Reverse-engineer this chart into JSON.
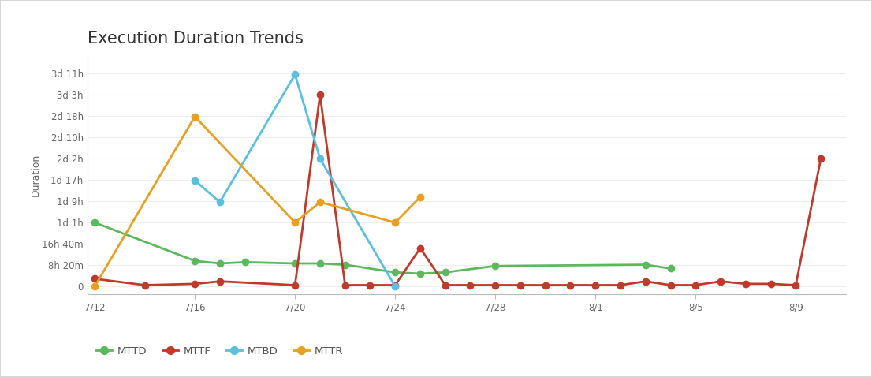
{
  "title": "Execution Duration Trends",
  "ylabel": "Duration",
  "background_color": "#ffffff",
  "border_color": "#d0d0d0",
  "title_color": "#333333",
  "axis_color": "#bbbbbb",
  "grid_color": "#eeeeee",
  "series": {
    "MTTD": {
      "color": "#5cb85c",
      "x": [
        0,
        4,
        5,
        6,
        8,
        9,
        10,
        12,
        13,
        14,
        16,
        22,
        23
      ],
      "y": [
        25,
        10,
        9,
        9.5,
        9,
        9,
        8.5,
        5.5,
        5,
        5.5,
        8,
        8.5,
        7
      ]
    },
    "MTTF": {
      "color": "#c0392b",
      "x": [
        0,
        2,
        4,
        5,
        8,
        9,
        10,
        11,
        12,
        13,
        14,
        15,
        16,
        17,
        18,
        19,
        20,
        21,
        22,
        23,
        24,
        25,
        26,
        27,
        28,
        29
      ],
      "y": [
        3,
        0.5,
        1,
        2,
        0.5,
        75,
        0.5,
        0.5,
        0.5,
        15,
        0.5,
        0.5,
        0.5,
        0.5,
        0.5,
        0.5,
        0.5,
        0.5,
        2,
        0.5,
        0.5,
        2,
        1,
        1,
        0.5,
        50
      ]
    },
    "MTBD": {
      "color": "#5bc0de",
      "x": [
        4,
        5,
        8,
        9,
        12
      ],
      "y": [
        41.5,
        33,
        83,
        50,
        0
      ]
    },
    "MTTR": {
      "color": "#e8a020",
      "x": [
        0,
        4,
        8,
        9,
        12,
        13
      ],
      "y": [
        0,
        66.5,
        25,
        33,
        25,
        35
      ]
    }
  },
  "x_ticks": {
    "labels": [
      "7/12",
      "7/16",
      "7/20",
      "7/24",
      "7/28",
      "8/1",
      "8/5",
      "8/9"
    ],
    "positions": [
      0,
      4,
      8,
      12,
      16,
      20,
      24,
      28
    ]
  },
  "y_ticks": {
    "labels": [
      "0",
      "8h 20m",
      "16h 40m",
      "1d 1h",
      "1d 9h",
      "1d 17h",
      "2d 2h",
      "2d 10h",
      "2d 18h",
      "3d 3h",
      "3d 11h"
    ],
    "values": [
      0,
      8.33,
      16.67,
      25,
      33.33,
      41.67,
      50,
      58.33,
      66.67,
      75,
      83.33
    ]
  },
  "ylim": [
    -3,
    90
  ],
  "xlim": [
    -0.3,
    30
  ],
  "legend": [
    "MTTD",
    "MTTF",
    "MTBD",
    "MTTR"
  ],
  "legend_colors": [
    "#5cb85c",
    "#c0392b",
    "#5bc0de",
    "#e8a020"
  ]
}
